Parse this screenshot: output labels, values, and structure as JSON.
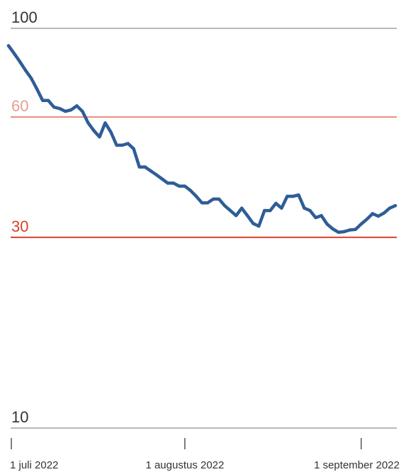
{
  "chart_data": {
    "type": "line",
    "title": "",
    "xlabel": "",
    "ylabel": "",
    "y_scale": "log",
    "ylim": [
      10,
      100
    ],
    "xlim": [
      "2022-07-01",
      "2022-09-07"
    ],
    "grid": true,
    "x_tick_labels": [
      {
        "date": "2022-07-01",
        "label": "1 juli 2022"
      },
      {
        "date": "2022-08-01",
        "label": "1 augustus 2022"
      },
      {
        "date": "2022-09-01",
        "label": "1 september 2022"
      }
    ],
    "y_reference_lines": [
      {
        "value": 100,
        "label": "100",
        "color": "#b9b9b9",
        "label_color": "#333333"
      },
      {
        "value": 60,
        "label": "60",
        "color": "#e68c7c",
        "label_color": "#e3a08f"
      },
      {
        "value": 30,
        "label": "30",
        "color": "#d9412c",
        "label_color": "#d9412c"
      },
      {
        "value": 10,
        "label": "10",
        "color": "#b9b9b9",
        "label_color": "#333333"
      }
    ],
    "series": [
      {
        "color": "#2f5d97",
        "x": [
          "2022-07-01",
          "2022-07-02",
          "2022-07-03",
          "2022-07-04",
          "2022-07-05",
          "2022-07-06",
          "2022-07-07",
          "2022-07-08",
          "2022-07-09",
          "2022-07-10",
          "2022-07-11",
          "2022-07-12",
          "2022-07-13",
          "2022-07-14",
          "2022-07-15",
          "2022-07-16",
          "2022-07-17",
          "2022-07-18",
          "2022-07-19",
          "2022-07-20",
          "2022-07-21",
          "2022-07-22",
          "2022-07-23",
          "2022-07-24",
          "2022-07-25",
          "2022-07-26",
          "2022-07-27",
          "2022-07-28",
          "2022-07-29",
          "2022-07-30",
          "2022-07-31",
          "2022-08-01",
          "2022-08-02",
          "2022-08-03",
          "2022-08-04",
          "2022-08-05",
          "2022-08-06",
          "2022-08-07",
          "2022-08-08",
          "2022-08-09",
          "2022-08-10",
          "2022-08-11",
          "2022-08-12",
          "2022-08-13",
          "2022-08-14",
          "2022-08-15",
          "2022-08-16",
          "2022-08-17",
          "2022-08-18",
          "2022-08-19",
          "2022-08-20",
          "2022-08-21",
          "2022-08-22",
          "2022-08-23",
          "2022-08-24",
          "2022-08-25",
          "2022-08-26",
          "2022-08-27",
          "2022-08-28",
          "2022-08-29",
          "2022-08-30",
          "2022-08-31",
          "2022-09-01",
          "2022-09-02",
          "2022-09-03",
          "2022-09-04",
          "2022-09-05",
          "2022-09-06",
          "2022-09-07"
        ],
        "values": [
          90.5,
          86.5,
          82.5,
          78.5,
          75,
          70.5,
          66,
          66,
          63.5,
          63,
          62,
          62.5,
          64,
          62,
          58,
          55.5,
          53.5,
          58,
          55,
          51,
          51,
          51.5,
          50,
          45,
          45,
          44,
          43,
          42,
          41,
          41,
          40.3,
          40.3,
          39.3,
          38,
          36.6,
          36.6,
          37.4,
          37.4,
          36,
          35,
          34,
          35.5,
          34,
          32.5,
          32,
          35,
          35,
          36.5,
          35.5,
          38,
          38,
          38.3,
          35.5,
          35,
          33.6,
          34,
          32.4,
          31.5,
          30.9,
          31,
          31.3,
          31.4,
          32.4,
          33.3,
          34.4,
          33.9,
          34.5,
          35.5,
          36
        ]
      }
    ]
  }
}
